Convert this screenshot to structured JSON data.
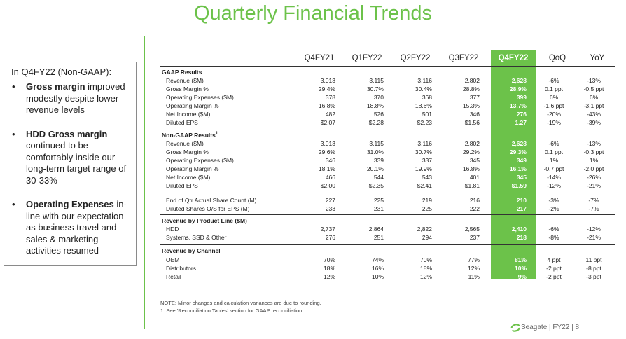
{
  "title": "Quarterly Financial Trends",
  "summary": {
    "intro": "In Q4FY22 (Non-GAAP):",
    "bullets": [
      {
        "bold": "Gross margin",
        "rest": " improved modestly despite lower revenue levels"
      },
      {
        "bold": "HDD Gross margin",
        "rest": " continued to be comfortably inside our long-term target range of 30-33%"
      },
      {
        "bold": "Operating Expenses",
        "rest": " in-line with our expectation as business travel and sales & marketing activities resumed"
      }
    ]
  },
  "columns": [
    "Q4FY21",
    "Q1FY22",
    "Q2FY22",
    "Q3FY22",
    "Q4FY22",
    "QoQ",
    "YoY"
  ],
  "sections": {
    "gaap": "GAAP Results",
    "nongaap": "Non-GAAP Results",
    "nongaap_sup": "1",
    "product": "Revenue by Product Line ($M)",
    "channel": "Revenue by Channel"
  },
  "rows": {
    "g_rev": {
      "label": "Revenue ($M)",
      "vals": [
        "3,013",
        "3,115",
        "3,116",
        "2,802",
        "2,628",
        "-6%",
        "-13%"
      ]
    },
    "g_gm": {
      "label": "Gross Margin %",
      "vals": [
        "29.4%",
        "30.7%",
        "30.4%",
        "28.8%",
        "28.9%",
        "0.1 ppt",
        "-0.5 ppt"
      ]
    },
    "g_opex": {
      "label": "Operating Expenses ($M)",
      "vals": [
        "378",
        "370",
        "368",
        "377",
        "399",
        "6%",
        "6%"
      ]
    },
    "g_om": {
      "label": "Operating Margin %",
      "vals": [
        "16.8%",
        "18.8%",
        "18.6%",
        "15.3%",
        "13.7%",
        "-1.6 ppt",
        "-3.1 ppt"
      ]
    },
    "g_ni": {
      "label": "Net Income ($M)",
      "vals": [
        "482",
        "526",
        "501",
        "346",
        "276",
        "-20%",
        "-43%"
      ]
    },
    "g_eps": {
      "label": "Diluted EPS",
      "vals": [
        "$2.07",
        "$2.28",
        "$2.23",
        "$1.56",
        "1.27",
        "-19%",
        "-39%"
      ]
    },
    "n_rev": {
      "label": "Revenue ($M)",
      "vals": [
        "3,013",
        "3,115",
        "3,116",
        "2,802",
        "2,628",
        "-6%",
        "-13%"
      ]
    },
    "n_gm": {
      "label": "Gross Margin %",
      "vals": [
        "29.6%",
        "31.0%",
        "30.7%",
        "29.2%",
        "29.3%",
        "0.1 ppt",
        "-0.3 ppt"
      ]
    },
    "n_opex": {
      "label": "Operating Expenses ($M)",
      "vals": [
        "346",
        "339",
        "337",
        "345",
        "349",
        "1%",
        "1%"
      ]
    },
    "n_om": {
      "label": "Operating Margin %",
      "vals": [
        "18.1%",
        "20.1%",
        "19.9%",
        "16.8%",
        "16.1%",
        "-0.7 ppt",
        "-2.0 ppt"
      ]
    },
    "n_ni": {
      "label": "Net Income ($M)",
      "vals": [
        "466",
        "544",
        "543",
        "401",
        "345",
        "-14%",
        "-26%"
      ]
    },
    "n_eps": {
      "label": "Diluted EPS",
      "vals": [
        "$2.00",
        "$2.35",
        "$2.41",
        "$1.81",
        "$1.59",
        "-12%",
        "-21%"
      ]
    },
    "s_end": {
      "label": "End of Qtr Actual Share Count (M)",
      "vals": [
        "227",
        "225",
        "219",
        "216",
        "210",
        "-3%",
        "-7%"
      ]
    },
    "s_dil": {
      "label": "Diluted Shares O/S for EPS (M)",
      "vals": [
        "233",
        "231",
        "225",
        "222",
        "217",
        "-2%",
        "-7%"
      ]
    },
    "p_hdd": {
      "label": "HDD",
      "vals": [
        "2,737",
        "2,864",
        "2,822",
        "2,565",
        "2,410",
        "-6%",
        "-12%"
      ]
    },
    "p_sys": {
      "label": "Systems, SSD & Other",
      "vals": [
        "276",
        "251",
        "294",
        "237",
        "218",
        "-8%",
        "-21%"
      ]
    },
    "c_oem": {
      "label": "OEM",
      "vals": [
        "70%",
        "74%",
        "70%",
        "77%",
        "81%",
        "4 ppt",
        "11 ppt"
      ]
    },
    "c_dist": {
      "label": "Distributors",
      "vals": [
        "18%",
        "16%",
        "18%",
        "12%",
        "10%",
        "-2 ppt",
        "-8 ppt"
      ]
    },
    "c_ret": {
      "label": "Retail",
      "vals": [
        "12%",
        "10%",
        "12%",
        "11%",
        "9%",
        "-2 ppt",
        "-3 ppt"
      ]
    }
  },
  "notes": {
    "line1": "NOTE: Minor changes and calculation variances are due to rounding.",
    "line2": "1.   See 'Reconciliation Tables' section for GAAP reconciliation."
  },
  "footer": "Seagate  | FY22  |  8",
  "accent_color": "#6cc24a"
}
